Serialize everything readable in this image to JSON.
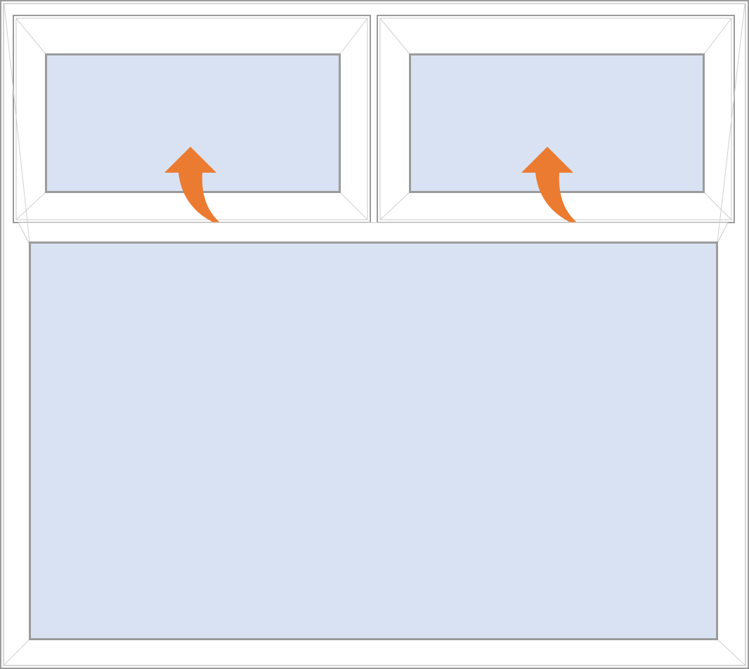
{
  "window": {
    "colors": {
      "frame_stroke": "#9b9b9b",
      "frame_inner_stroke": "#c8c8c8",
      "glass": "#d9e2f2",
      "glass_stroke": "#9b9b9b",
      "arrow": "#ec7b32",
      "background": "#ffffff"
    },
    "sashes": [
      {
        "id": "top-left-sash",
        "type": "top-hung-opener",
        "icon": "open-outward-arrow-icon"
      },
      {
        "id": "top-right-sash",
        "type": "top-hung-opener",
        "icon": "open-outward-arrow-icon"
      },
      {
        "id": "bottom-pane",
        "type": "fixed-pane",
        "icon": ""
      }
    ]
  }
}
